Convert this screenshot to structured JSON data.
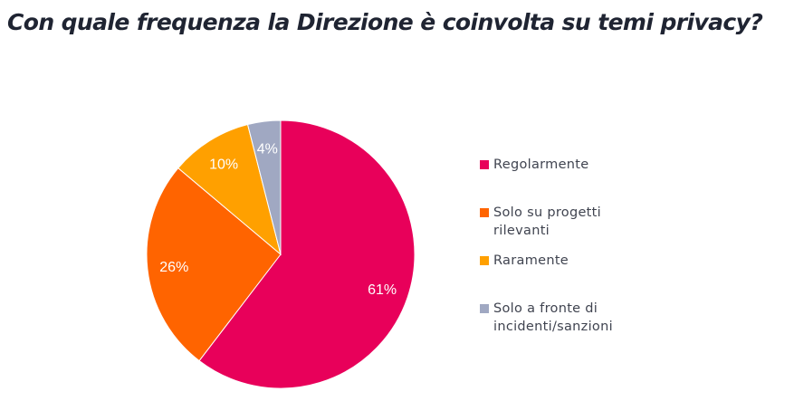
{
  "chart_data": {
    "type": "pie",
    "title": "Con quale frequenza la Direzione è coinvolta su temi privacy?",
    "legend_position": "right",
    "slices": [
      {
        "label": "Regolarmente",
        "value": 61,
        "data_label": "61%",
        "color": "#E8005A"
      },
      {
        "label": "Solo su progetti rilevanti",
        "value": 26,
        "data_label": "26%",
        "color": "#FF6400"
      },
      {
        "label": "Raramente",
        "value": 10,
        "data_label": "10%",
        "color": "#FFA000"
      },
      {
        "label": "Solo a fronte di incidenti/sanzioni",
        "value": 4,
        "data_label": "4%",
        "color": "#A0A8C2"
      }
    ]
  }
}
